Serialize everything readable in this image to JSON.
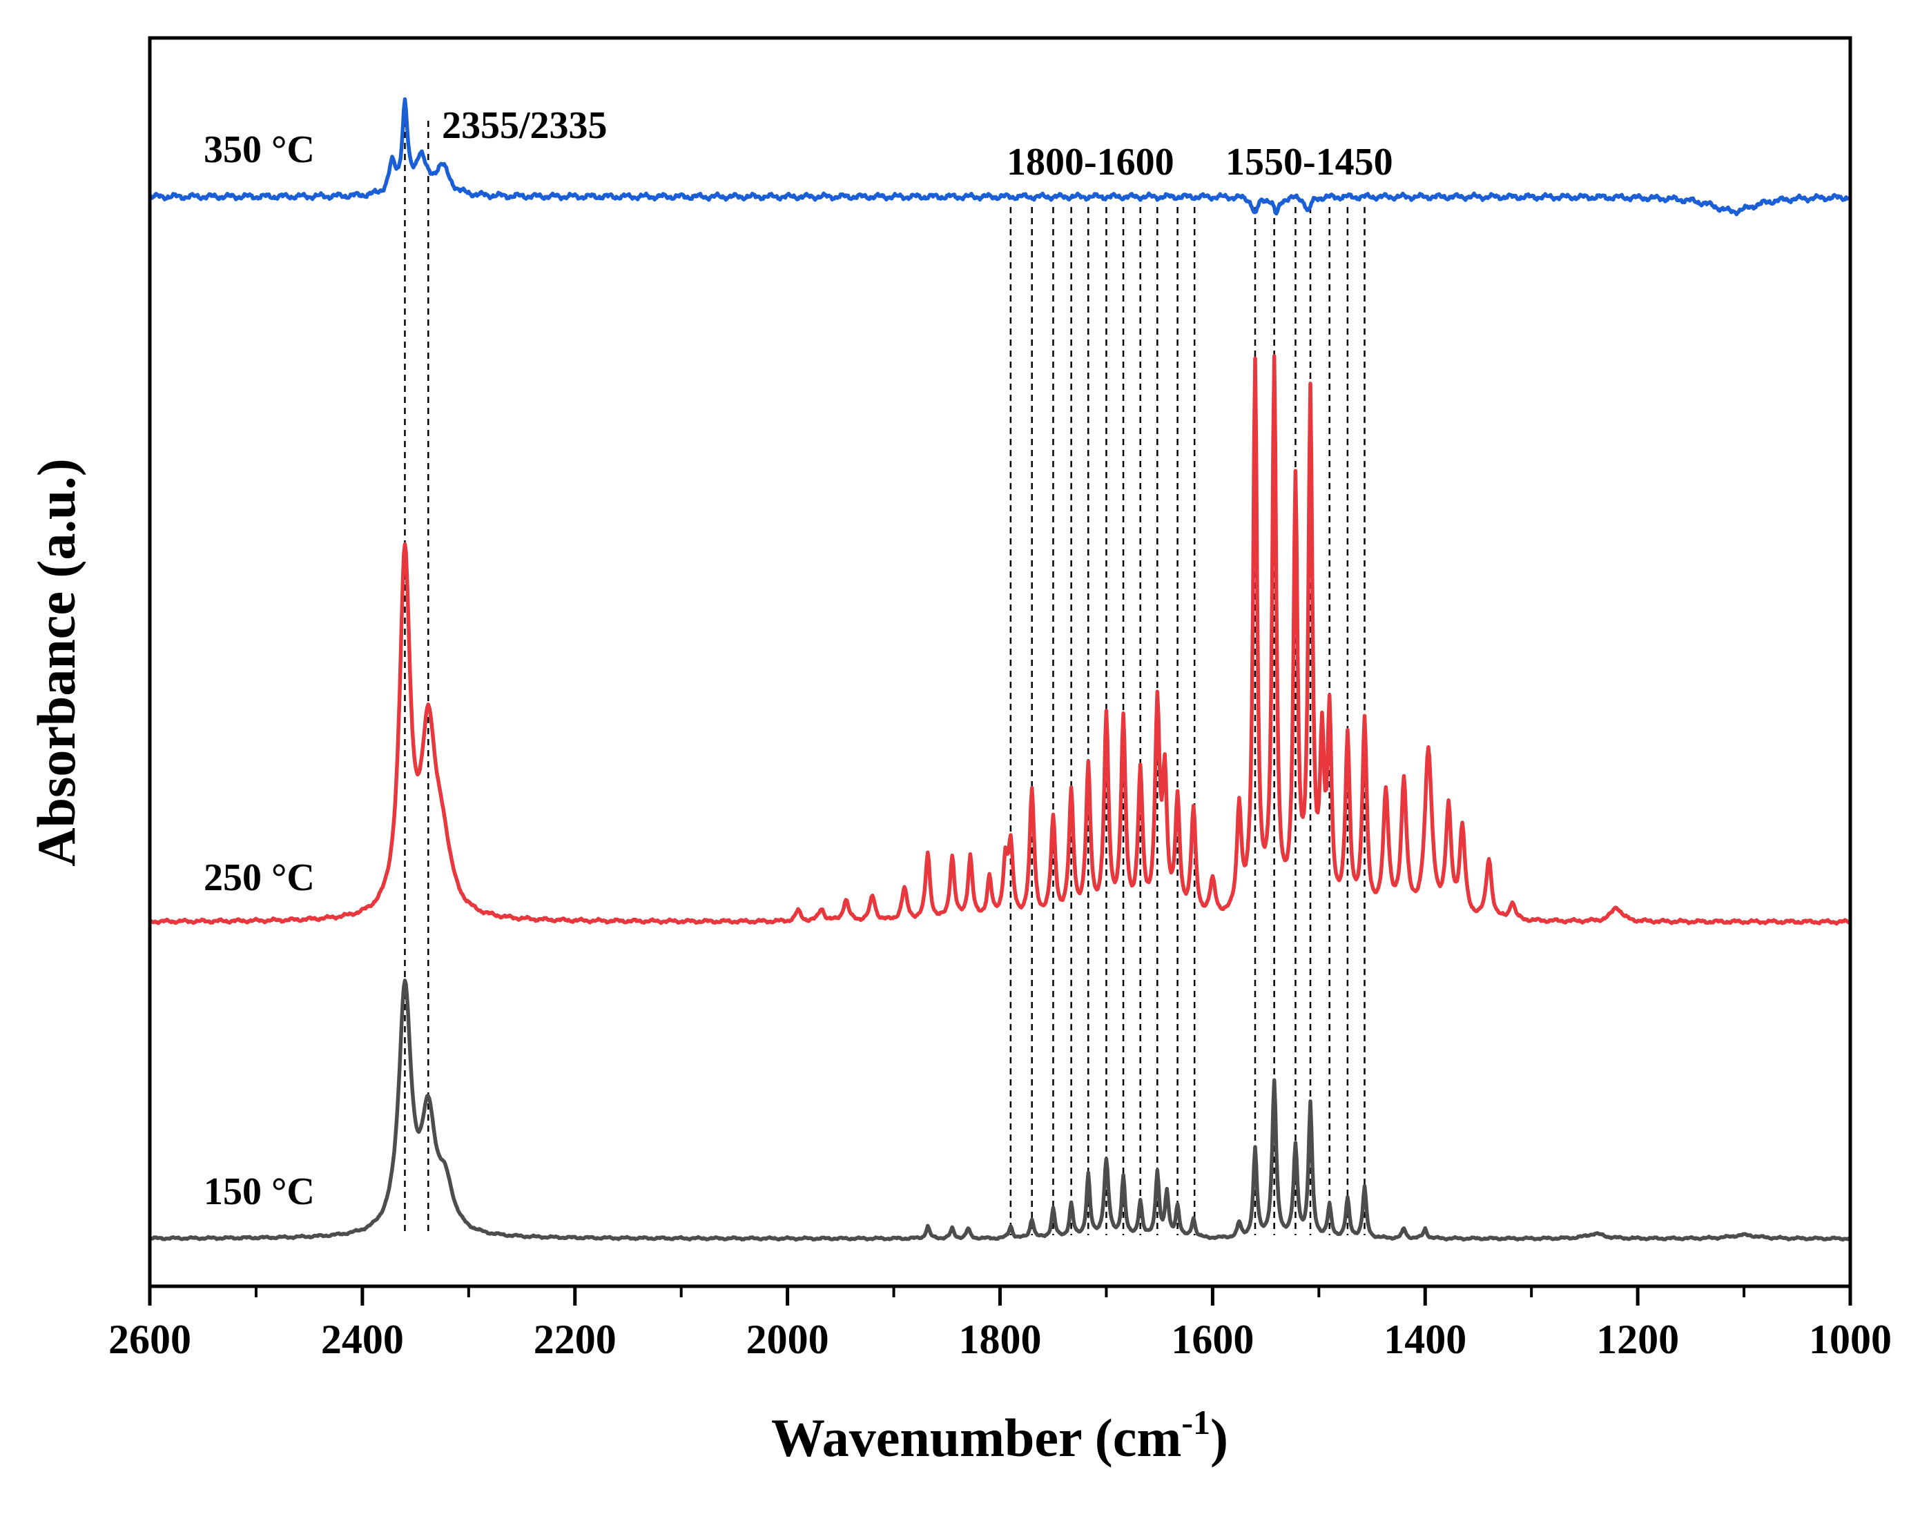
{
  "chart_data": {
    "type": "line",
    "xlabel": "Wavenumber (cm",
    "xlabel_sup": "-1",
    "xlabel_close": ")",
    "ylabel": "Absorbance (a.u.)",
    "xlim": [
      2600,
      1000
    ],
    "x_inverted": true,
    "y_ticks_shown": false,
    "xticks": [
      2600,
      2400,
      2200,
      2000,
      1800,
      1600,
      1400,
      1200,
      1000
    ],
    "xtick_labels": [
      "2600",
      "2400",
      "2200",
      "2000",
      "1800",
      "1600",
      "1400",
      "1200",
      "1000"
    ],
    "series": [
      {
        "name": "150 °C",
        "color": "#4d4d4d",
        "baseline": 0,
        "peaks": [
          [
            2360,
            1.0,
            7
          ],
          [
            2338,
            0.45,
            8
          ],
          [
            2322,
            0.18,
            9
          ],
          [
            1868,
            0.05,
            2
          ],
          [
            1845,
            0.04,
            2
          ],
          [
            1830,
            0.04,
            2
          ],
          [
            1790,
            0.05,
            2
          ],
          [
            1770,
            0.08,
            2
          ],
          [
            1750,
            0.12,
            2
          ],
          [
            1733,
            0.14,
            2
          ],
          [
            1717,
            0.26,
            2
          ],
          [
            1700,
            0.32,
            2.5
          ],
          [
            1684,
            0.25,
            2
          ],
          [
            1668,
            0.15,
            2
          ],
          [
            1652,
            0.27,
            2
          ],
          [
            1643,
            0.18,
            2
          ],
          [
            1633,
            0.13,
            2
          ],
          [
            1618,
            0.08,
            2
          ],
          [
            1575,
            0.06,
            2
          ],
          [
            1560,
            0.36,
            2
          ],
          [
            1542,
            0.64,
            2.2
          ],
          [
            1522,
            0.37,
            2.2
          ],
          [
            1508,
            0.55,
            2
          ],
          [
            1490,
            0.13,
            2
          ],
          [
            1473,
            0.16,
            2
          ],
          [
            1457,
            0.21,
            2
          ],
          [
            1420,
            0.04,
            2
          ],
          [
            1400,
            0.04,
            2
          ],
          [
            1240,
            0.02,
            10
          ],
          [
            1100,
            0.015,
            15
          ]
        ]
      },
      {
        "name": "250 °C",
        "color": "#e8383d",
        "baseline": 0,
        "peaks": [
          [
            2360,
            1.0,
            6
          ],
          [
            2338,
            0.48,
            8
          ],
          [
            2325,
            0.18,
            10
          ],
          [
            1990,
            0.03,
            3
          ],
          [
            1968,
            0.035,
            3
          ],
          [
            1945,
            0.06,
            3
          ],
          [
            1920,
            0.07,
            3
          ],
          [
            1890,
            0.09,
            3
          ],
          [
            1868,
            0.19,
            2.5
          ],
          [
            1845,
            0.18,
            2.5
          ],
          [
            1828,
            0.18,
            2.5
          ],
          [
            1810,
            0.12,
            2.5
          ],
          [
            1795,
            0.16,
            2.5
          ],
          [
            1790,
            0.2,
            2.5
          ],
          [
            1770,
            0.36,
            2.5
          ],
          [
            1750,
            0.28,
            2.5
          ],
          [
            1733,
            0.35,
            2.5
          ],
          [
            1717,
            0.42,
            2.5
          ],
          [
            1700,
            0.56,
            2.5
          ],
          [
            1684,
            0.55,
            2.5
          ],
          [
            1668,
            0.4,
            2.5
          ],
          [
            1652,
            0.58,
            2.5
          ],
          [
            1645,
            0.38,
            2.5
          ],
          [
            1633,
            0.32,
            2.5
          ],
          [
            1618,
            0.3,
            2.5
          ],
          [
            1600,
            0.1,
            3
          ],
          [
            1575,
            0.3,
            2.5
          ],
          [
            1560,
            1.55,
            2.3
          ],
          [
            1542,
            1.55,
            2.3
          ],
          [
            1522,
            1.2,
            2.3
          ],
          [
            1508,
            1.45,
            2.3
          ],
          [
            1497,
            0.45,
            2.3
          ],
          [
            1490,
            0.55,
            2.3
          ],
          [
            1473,
            0.5,
            2.5
          ],
          [
            1457,
            0.55,
            2.5
          ],
          [
            1437,
            0.35,
            3
          ],
          [
            1420,
            0.38,
            3
          ],
          [
            1397,
            0.47,
            4
          ],
          [
            1378,
            0.3,
            3
          ],
          [
            1365,
            0.25,
            3
          ],
          [
            1340,
            0.17,
            3
          ],
          [
            1318,
            0.05,
            3
          ],
          [
            1220,
            0.04,
            6
          ]
        ]
      },
      {
        "name": "350 °C",
        "color": "#1a5fd6",
        "baseline": 0,
        "peaks": [
          [
            2360,
            0.3,
            3
          ],
          [
            2372,
            0.1,
            4
          ],
          [
            2345,
            0.13,
            6
          ],
          [
            2325,
            0.1,
            8
          ],
          [
            1560,
            -0.06,
            3
          ],
          [
            1540,
            -0.06,
            3
          ],
          [
            1510,
            -0.05,
            3
          ],
          [
            1110,
            -0.05,
            25
          ]
        ]
      }
    ],
    "annotations": [
      {
        "text": "2355/2335"
      },
      {
        "text": "1800-1600"
      },
      {
        "text": "1550-1450"
      }
    ],
    "reference_lines": [
      2360,
      2338,
      1790,
      1770,
      1750,
      1733,
      1717,
      1700,
      1684,
      1668,
      1652,
      1633,
      1617,
      1560,
      1542,
      1522,
      1508,
      1490,
      1473,
      1457
    ]
  }
}
